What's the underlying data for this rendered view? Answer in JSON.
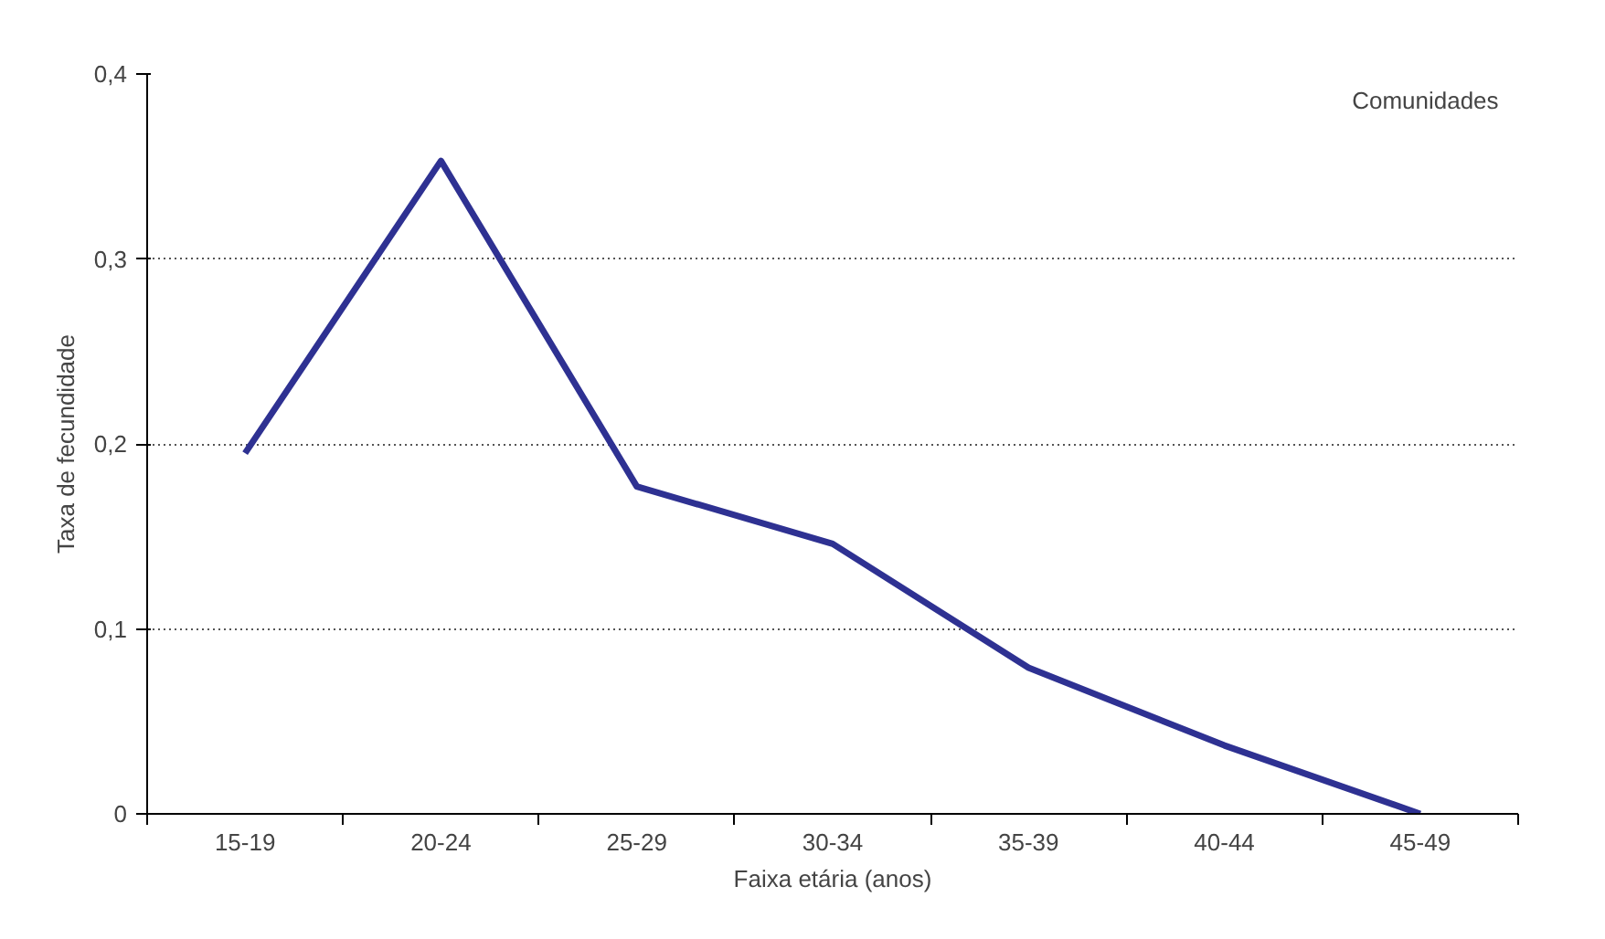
{
  "chart_data": {
    "type": "line",
    "xlabel": "Faixa etária (anos)",
    "ylabel": "Taxa de fecundidade",
    "categories": [
      "15-19",
      "20-24",
      "25-29",
      "30-34",
      "35-39",
      "40-44",
      "45-49"
    ],
    "series": [
      {
        "color": "#2e3192",
        "values": [
          0.195,
          0.353,
          0.177,
          0.146,
          0.079,
          0.037,
          0.0
        ]
      }
    ],
    "ylim": [
      0,
      0.4
    ],
    "yticks": [
      {
        "value": 0,
        "label": "0"
      },
      {
        "value": 0.1,
        "label": "0,1"
      },
      {
        "value": 0.2,
        "label": "0,2"
      },
      {
        "value": 0.3,
        "label": "0,3"
      },
      {
        "value": 0.4,
        "label": "0,4"
      }
    ],
    "grid": "y",
    "marker": "none",
    "line_style": "solid",
    "annotations": [
      "Comunidades"
    ]
  }
}
